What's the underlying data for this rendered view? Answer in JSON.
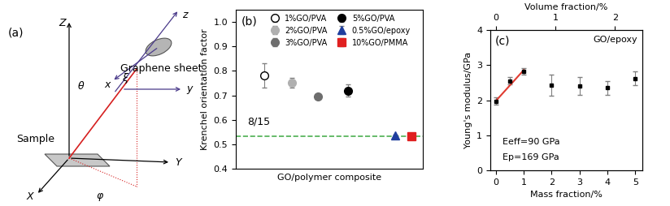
{
  "diagram": {
    "panel": "(a)",
    "lab_axes": [
      "X",
      "Y",
      "Z"
    ],
    "sheet_axes": [
      "x",
      "y",
      "z"
    ],
    "angles": [
      "θ",
      "ξ",
      "φ"
    ],
    "sample": "Sample",
    "sheet": "Graphene sheet"
  },
  "chart_data": [
    {
      "type": "scatter",
      "panel": "(b)",
      "xlabel": "GO/polymer composite",
      "ylabel": "Krenchel orientation factor",
      "xlim": [
        0,
        10
      ],
      "ylim": [
        0.4,
        1.05
      ],
      "yticks": [
        0.4,
        0.5,
        0.6,
        0.7,
        0.8,
        0.9,
        1.0
      ],
      "tick_labels": "y",
      "legend": "upper center",
      "series": [
        {
          "name": "1%GO/PVA",
          "color": "#ffffff",
          "marker": "o",
          "x": [
            1.5
          ],
          "values": [
            0.78
          ],
          "errors": [
            0.05
          ]
        },
        {
          "name": "2%GO/PVA",
          "color": "#b0b0b0",
          "marker": "o",
          "x": [
            3.0
          ],
          "values": [
            0.75
          ],
          "errors": [
            0.02
          ]
        },
        {
          "name": "3%GO/PVA",
          "color": "#6e6e6e",
          "marker": "o",
          "x": [
            4.4
          ],
          "values": [
            0.695
          ],
          "errors": [
            0.01
          ]
        },
        {
          "name": "5%GO/PVA",
          "color": "#000000",
          "marker": "o",
          "x": [
            6.0
          ],
          "values": [
            0.72
          ],
          "errors": [
            0.025
          ]
        },
        {
          "name": "0.5%GO/epoxy",
          "color": "#1f3e9e",
          "marker": "^",
          "x": [
            8.5
          ],
          "values": [
            0.535
          ],
          "errors": [
            0.005
          ]
        },
        {
          "name": "10%GO/PMMA",
          "color": "#e02020",
          "marker": "s",
          "x": [
            9.4
          ],
          "values": [
            0.533
          ],
          "errors": [
            0.005
          ]
        }
      ],
      "reference_line": {
        "value": 0.5333,
        "label": "8/15",
        "color": "#4caf50",
        "line_style": "dashed"
      }
    },
    {
      "type": "scatter",
      "panel": "(c)",
      "xlabel": "Mass fraction/%",
      "ylabel": "Young's modulus/GPa",
      "x2label": "Volume fraction/%",
      "xlim": [
        -0.2,
        5.25
      ],
      "xticks": [
        0,
        1,
        2,
        3,
        4,
        5
      ],
      "x2lim": [
        -0.09,
        2.46
      ],
      "x2ticks": [
        0,
        1,
        2
      ],
      "ylim": [
        0,
        4
      ],
      "yticks": [
        0,
        1,
        2,
        3,
        4
      ],
      "annotations": [
        "GO/epoxy",
        "Eeff=90 GPa",
        "Ep=169 GPa"
      ],
      "series": [
        {
          "type": "scatter",
          "color": "#000000",
          "marker": "s",
          "x": [
            0,
            0.5,
            1,
            2,
            3,
            4,
            5
          ],
          "values": [
            1.97,
            2.55,
            2.82,
            2.43,
            2.4,
            2.35,
            2.62
          ],
          "errors": [
            0.1,
            0.1,
            0.1,
            0.3,
            0.25,
            0.2,
            0.2
          ]
        },
        {
          "type": "line",
          "color": "#e03c31",
          "x": [
            0,
            1
          ],
          "values": [
            1.98,
            2.86
          ]
        }
      ]
    }
  ]
}
